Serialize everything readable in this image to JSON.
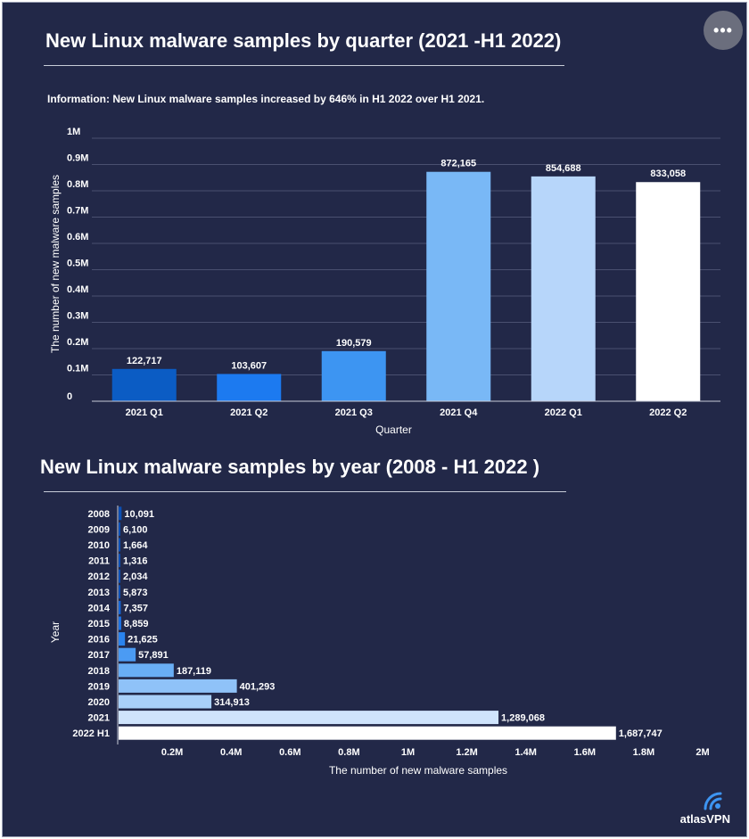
{
  "menu": {
    "icon": "more-horizontal-icon",
    "label": "•••"
  },
  "brand": {
    "name": "atlasVPN",
    "icon": "signal-arc-icon"
  },
  "chart_data": [
    {
      "type": "bar",
      "title": "New Linux malware samples by quarter (2021 -H1 2022)",
      "info_label": "Information:",
      "info_text": " New Linux malware samples increased by 646% in H1 2022 over H1 2021.",
      "xlabel": "Quarter",
      "ylabel": "The number of new malware samples",
      "categories": [
        "2021 Q1",
        "2021 Q2",
        "2021 Q3",
        "2021 Q4",
        "2022 Q1",
        "2022 Q2"
      ],
      "values": [
        122717,
        103607,
        190579,
        872165,
        854688,
        833058
      ],
      "data_labels": [
        "122,717",
        "103,607",
        "190,579",
        "872,165",
        "854,688",
        "833,058"
      ],
      "colors": [
        "#0b5cc4",
        "#1c7af0",
        "#3d95f2",
        "#79b8f6",
        "#b7d6fa",
        "#ffffff"
      ],
      "ylim": [
        0,
        1000000
      ],
      "yticks": [
        0,
        100000,
        200000,
        300000,
        400000,
        500000,
        600000,
        700000,
        800000,
        900000,
        1000000
      ],
      "ytick_labels": [
        "0",
        "0.1M",
        "0.2M",
        "0.3M",
        "0.4M",
        "0.5M",
        "0.6M",
        "0.7M",
        "0.8M",
        "0.9M",
        "1M"
      ],
      "grid": true
    },
    {
      "type": "bar",
      "orientation": "horizontal",
      "title": "New Linux malware samples by year (2008 - H1 2022 )",
      "xlabel": "The number of new malware samples",
      "ylabel": "Year",
      "categories": [
        "2008",
        "2009",
        "2010",
        "2011",
        "2012",
        "2013",
        "2014",
        "2015",
        "2016",
        "2017",
        "2018",
        "2019",
        "2020",
        "2021",
        "2022 H1"
      ],
      "values": [
        10091,
        6100,
        1664,
        1316,
        2034,
        5873,
        7357,
        8859,
        21625,
        57891,
        187119,
        401293,
        314913,
        1289068,
        1687747
      ],
      "data_labels": [
        "10,091",
        "6,100",
        "1,664",
        "1,316",
        "2,034",
        "5,873",
        "7,357",
        "8,859",
        "21,625",
        "57,891",
        "187,119",
        "401,293",
        "314,913",
        "1,289,068",
        "1,687,747"
      ],
      "colors": [
        "#0b4fb5",
        "#0b4fb5",
        "#0b4fb5",
        "#0b4fb5",
        "#0b4fb5",
        "#0b4fb5",
        "#1566d6",
        "#1c73e6",
        "#2a83ee",
        "#4b9bf3",
        "#69aef5",
        "#8fc2f8",
        "#a9d0f9",
        "#cfe4fc",
        "#ffffff"
      ],
      "xlim": [
        0,
        2000000
      ],
      "xticks": [
        200000,
        400000,
        600000,
        800000,
        1000000,
        1200000,
        1400000,
        1600000,
        1800000,
        2000000
      ],
      "xtick_labels": [
        "0.2M",
        "0.4M",
        "0.6M",
        "0.8M",
        "1M",
        "1.2M",
        "1.4M",
        "1.6M",
        "1.8M",
        "2M"
      ],
      "grid": false
    }
  ]
}
